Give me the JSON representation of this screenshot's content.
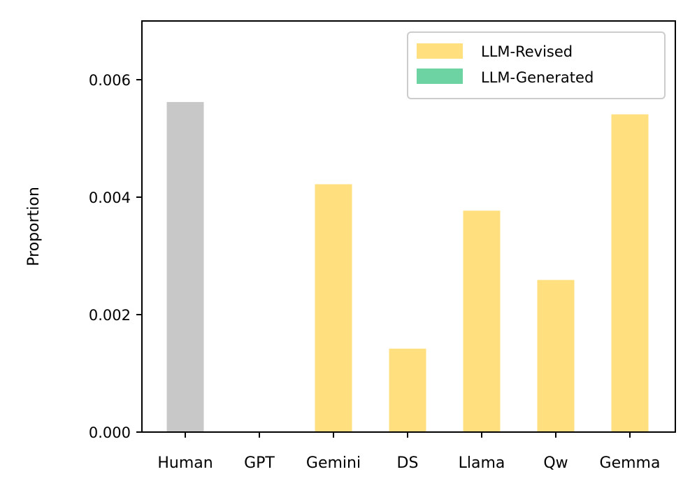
{
  "chart_data": {
    "type": "bar",
    "title": "",
    "xlabel": "",
    "ylabel": "Proportion",
    "ylim": [
      0,
      0.007
    ],
    "yticks": [
      "0.000",
      "0.002",
      "0.004",
      "0.006"
    ],
    "ytick_values": [
      0,
      0.002,
      0.004,
      0.006
    ],
    "categories": [
      "Human",
      "GPT",
      "Gemini",
      "DS",
      "Llama",
      "Qw",
      "Gemma"
    ],
    "series": [
      {
        "name": "Human",
        "color": "#c8c8c8",
        "values": [
          0.00562,
          0,
          0,
          0,
          0,
          0,
          0
        ],
        "in_legend": false
      },
      {
        "name": "LLM-Revised",
        "color": "#ffdf7e",
        "values": [
          0,
          0,
          0.00422,
          0.00142,
          0.00377,
          0.00259,
          0.00541
        ],
        "in_legend": true
      },
      {
        "name": "LLM-Generated",
        "color": "#6dd3a3",
        "values": [
          0,
          0,
          0,
          0,
          0,
          0,
          0
        ],
        "in_legend": true
      }
    ],
    "legend": {
      "position": "top-right",
      "entries": [
        {
          "label": "LLM-Revised",
          "color": "#ffdf7e"
        },
        {
          "label": "LLM-Generated",
          "color": "#6dd3a3"
        }
      ]
    },
    "grid": false
  }
}
